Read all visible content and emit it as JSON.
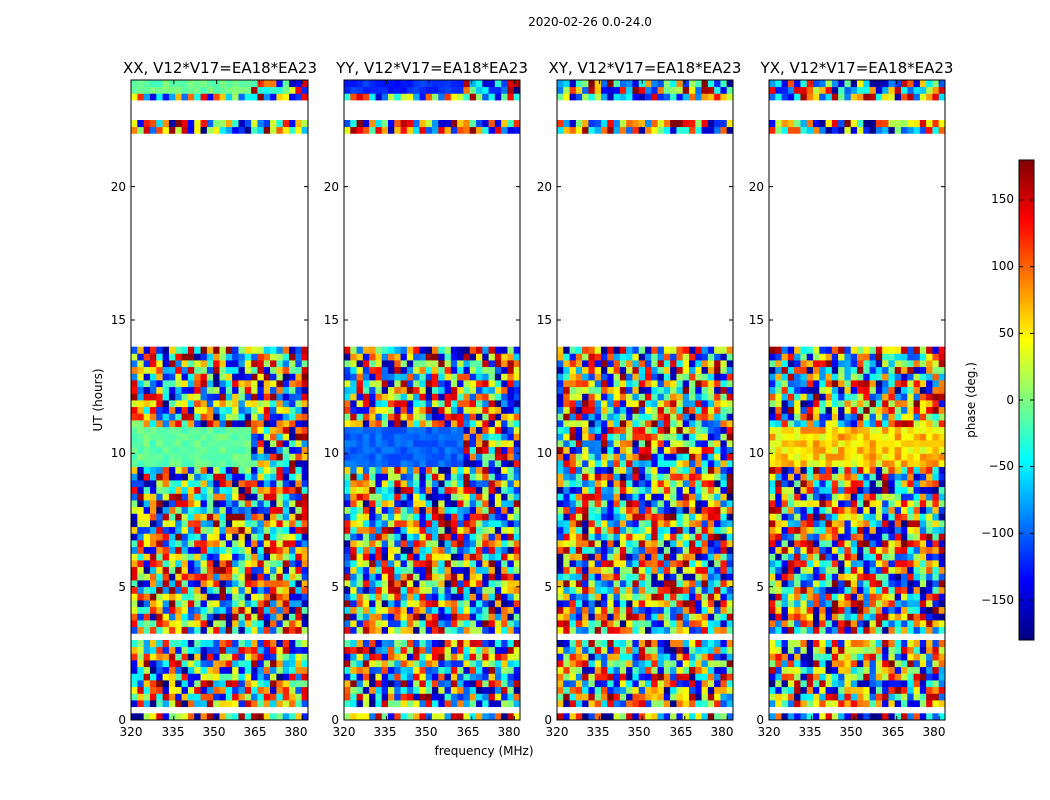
{
  "figure": {
    "suptitle": "2020-02-26 0.0-24.0",
    "xlabel": "frequency (MHz)",
    "ylabel": "UT (hours)",
    "colorbar_label": "phase (deg.)",
    "colorbar_ticks": [
      "150",
      "100",
      "50",
      "0",
      "−50",
      "−100",
      "−150"
    ],
    "colorbar_ticklabel_values": [
      150,
      100,
      50,
      0,
      -50,
      -100,
      -150
    ],
    "colorbar_range": [
      -180,
      180
    ],
    "colormap": [
      "#00007f",
      "#0000ff",
      "#007fff",
      "#00ffff",
      "#7fff7f",
      "#ffff00",
      "#ff7f00",
      "#ff0000",
      "#7f0000"
    ]
  },
  "chart_data": {
    "type": "heatmap",
    "value": "visibility phase (deg.)",
    "x_range": [
      320,
      382
    ],
    "y_range": [
      0,
      24
    ],
    "x_ticks": [
      320,
      335,
      350,
      365,
      380
    ],
    "x_tick_labels": [
      "320",
      "335",
      "350",
      "365",
      "380"
    ],
    "y_ticks": [
      0,
      5,
      10,
      15,
      20
    ],
    "y_tick_labels": [
      "0",
      "5",
      "10",
      "15",
      "20"
    ],
    "panels": [
      {
        "title": "XX, V12*V17=EA18*EA23",
        "pol": "XX"
      },
      {
        "title": "YY, V12*V17=EA18*EA23",
        "pol": "YY"
      },
      {
        "title": "XY, V12*V17=EA18*EA23",
        "pol": "XY"
      },
      {
        "title": "YX, V12*V17=EA18*EA23",
        "pol": "YX"
      }
    ],
    "data_gaps_hours": [
      [
        14.0,
        22.0
      ],
      [
        22.6,
        23.3
      ],
      [
        0.3,
        0.45
      ],
      [
        3.1,
        3.2
      ]
    ],
    "coherent_phase_bands": [
      {
        "pol": "XX",
        "hours": [
          9.4,
          11.0
        ],
        "approx_phase_deg": -10,
        "note": "green, below ~362 MHz"
      },
      {
        "pol": "XX",
        "hours": [
          23.4,
          24.0
        ],
        "approx_phase_deg": -10,
        "note": "green, below ~362 MHz"
      },
      {
        "pol": "YY",
        "hours": [
          9.4,
          11.0
        ],
        "approx_phase_deg": -100,
        "note": "blue, below ~362 MHz"
      },
      {
        "pol": "YY",
        "hours": [
          23.4,
          24.0
        ],
        "approx_phase_deg": -120,
        "note": "blue, below ~362 MHz"
      },
      {
        "pol": "YX",
        "hours": [
          9.4,
          11.0
        ],
        "approx_phase_deg": 60,
        "note": "orange, noisy"
      }
    ]
  }
}
